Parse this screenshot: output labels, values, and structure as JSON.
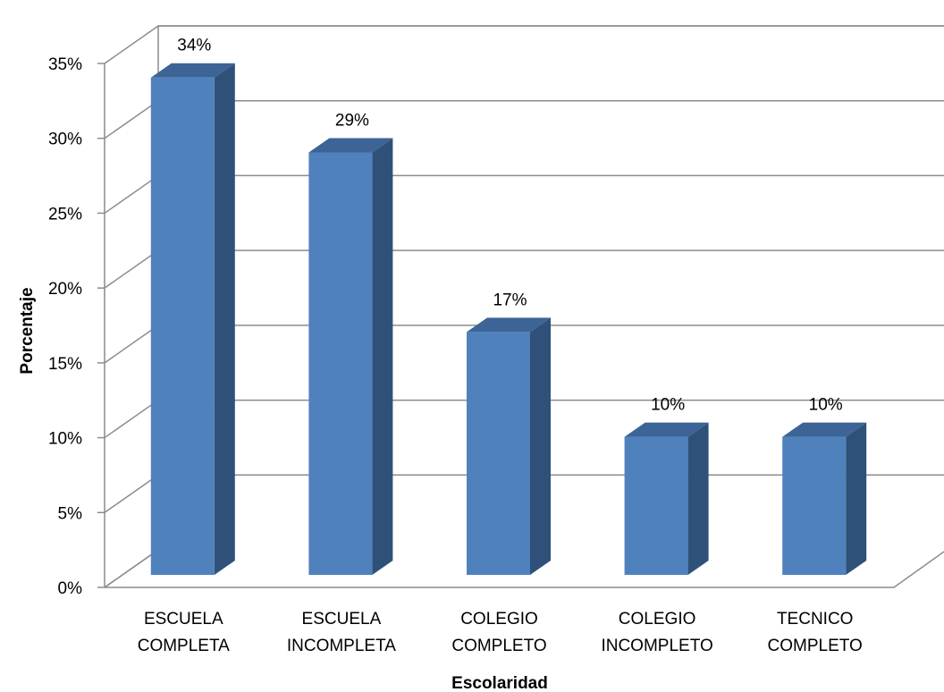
{
  "chart_data": {
    "type": "bar",
    "title": "",
    "xlabel": "Escolaridad",
    "ylabel": "Porcentaje",
    "ylim": [
      0,
      35
    ],
    "yticks": [
      "0%",
      "5%",
      "10%",
      "15%",
      "20%",
      "25%",
      "30%",
      "35%"
    ],
    "categories": [
      [
        "ESCUELA",
        "COMPLETA"
      ],
      [
        "ESCUELA",
        "INCOMPLETA"
      ],
      [
        "COLEGIO",
        "COMPLETO"
      ],
      [
        "COLEGIO",
        "INCOMPLETO"
      ],
      [
        "TECNICO",
        "COMPLETO"
      ]
    ],
    "values": [
      34,
      29,
      17,
      10,
      10
    ],
    "data_labels": [
      "34%",
      "29%",
      "17%",
      "10%",
      "10%"
    ],
    "style": "3d-column",
    "grid": true,
    "legend": "none",
    "colors": {
      "bar_front": "#4F81BD",
      "bar_side": "#2F5179",
      "bar_top": "#3C6496",
      "grid": "#8C8C8C"
    }
  }
}
